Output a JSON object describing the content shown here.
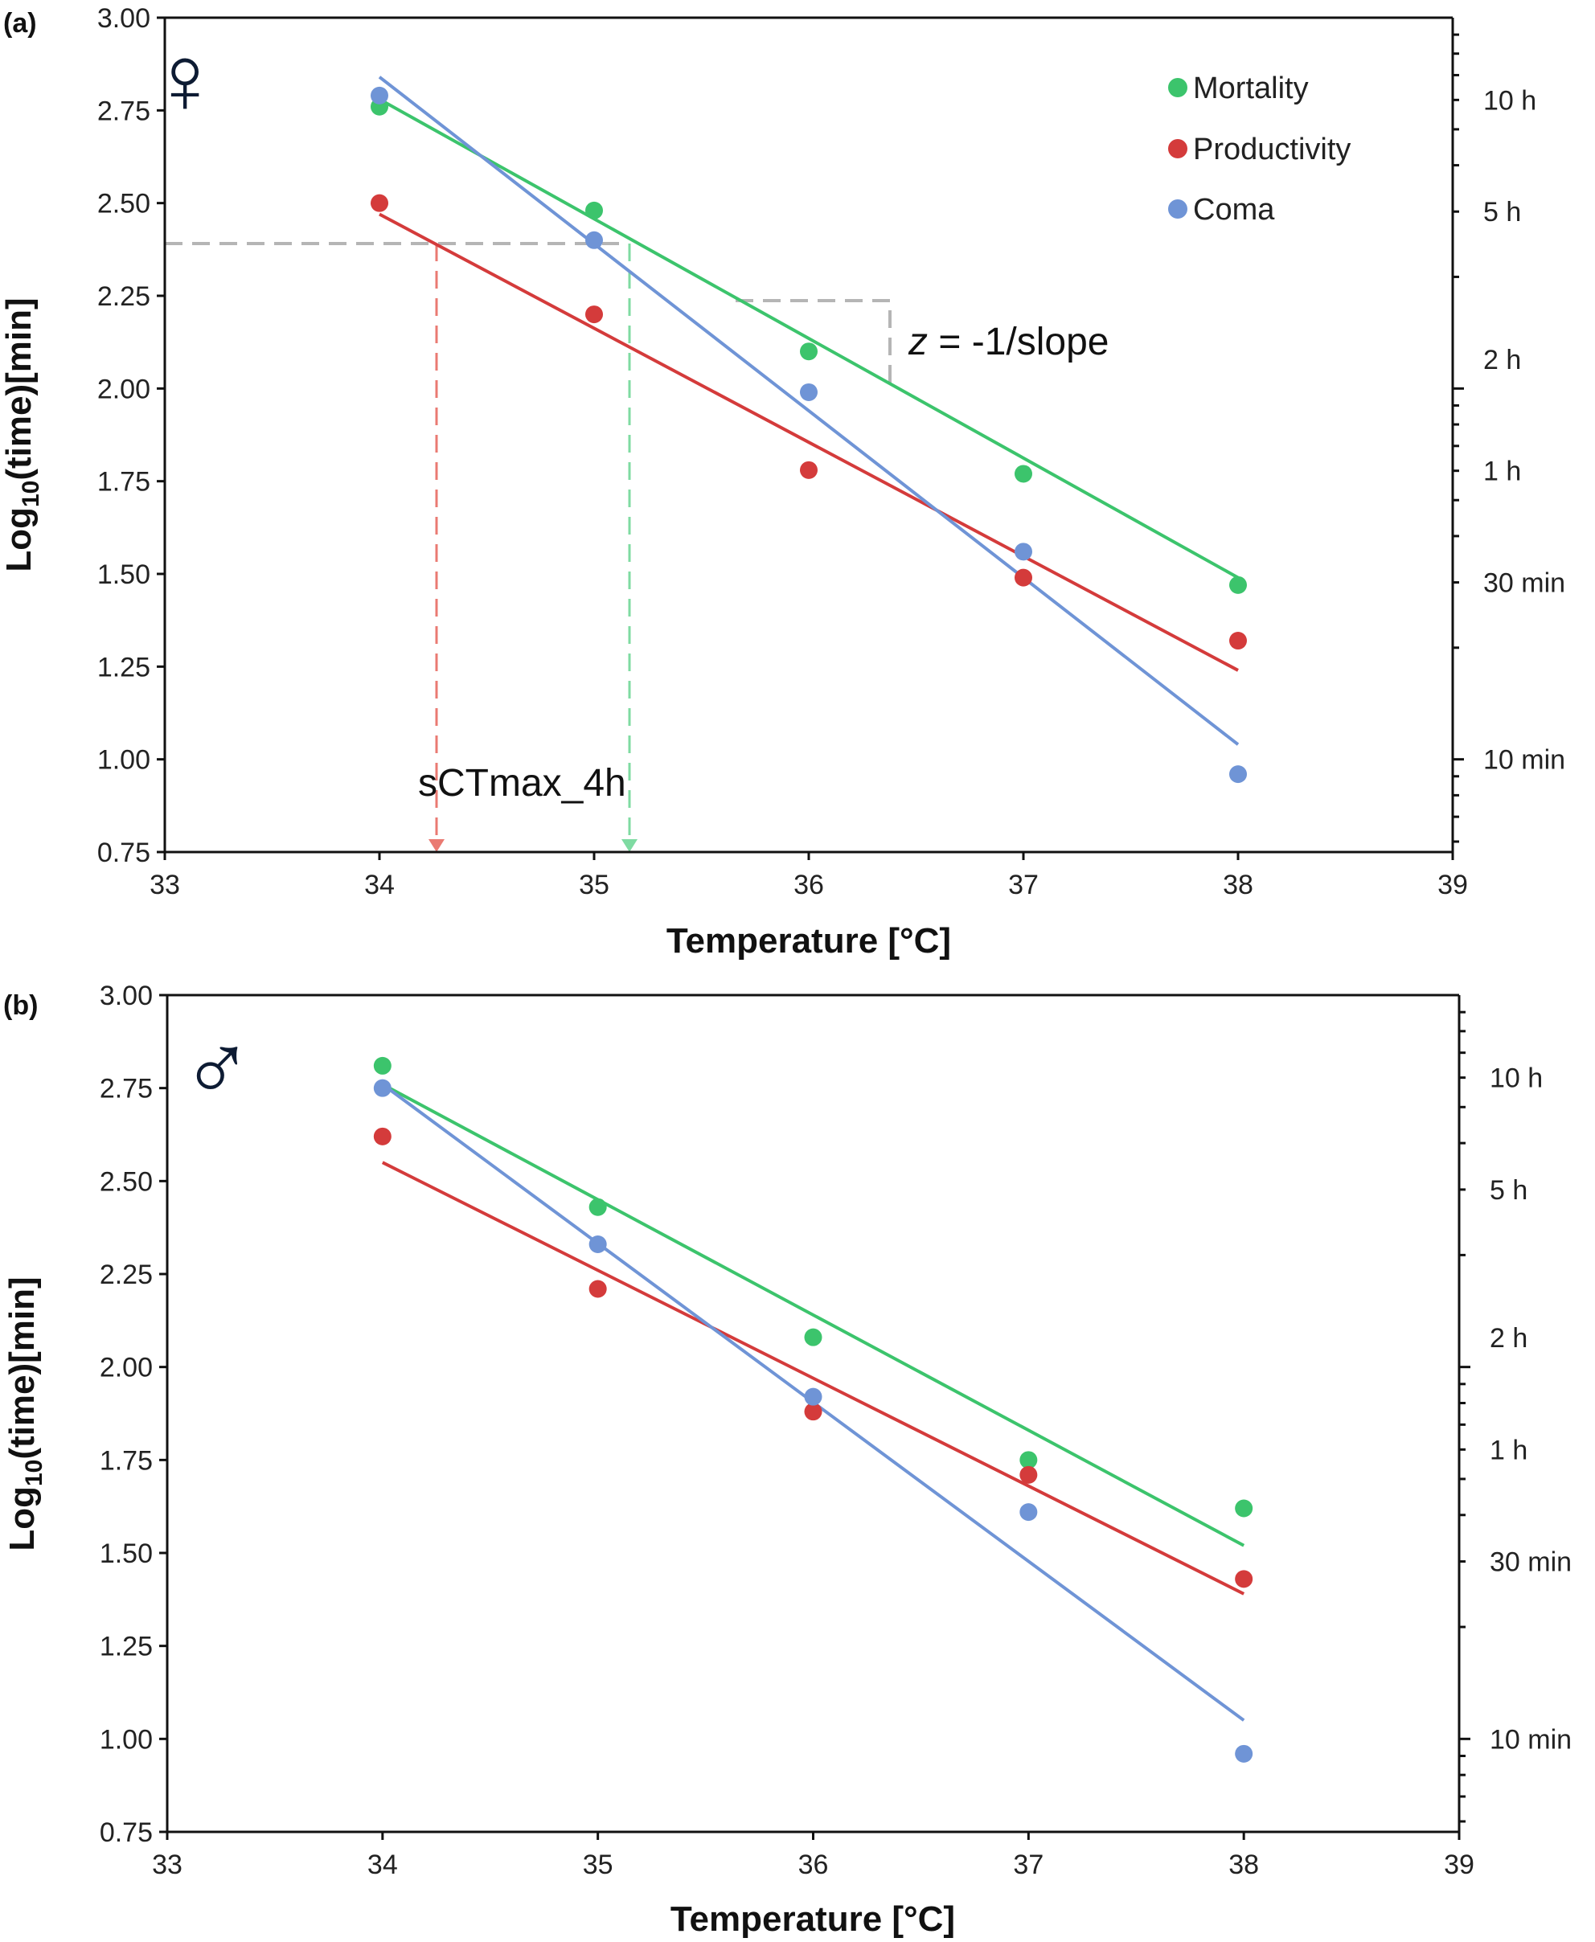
{
  "figure": {
    "legend": [
      {
        "name": "Mortality",
        "color": "#3cc46c"
      },
      {
        "name": "Productivity",
        "color": "#d43b3b"
      },
      {
        "name": "Coma",
        "color": "#6f94d6"
      }
    ],
    "annotations": {
      "slope_var": "z",
      "slope_text": " = -1/slope",
      "sctmax_text": "sCTmax_4h"
    }
  },
  "chart_data": [
    {
      "panel_label": "(a)",
      "sex_symbol": "♀",
      "type": "scatter",
      "xlabel": "Temperature [°C]",
      "ylabel_main": "Log",
      "ylabel_sub": "10",
      "ylabel_rest": "(time)[min]",
      "xlim": [
        33,
        39
      ],
      "ylim": [
        0.75,
        3.0
      ],
      "xticks": [
        "33",
        "34",
        "35",
        "36",
        "37",
        "38",
        "39"
      ],
      "yticks": [
        "0.75",
        "1.00",
        "1.25",
        "1.50",
        "1.75",
        "2.00",
        "2.25",
        "2.50",
        "2.75",
        "3.00"
      ],
      "right_axis": {
        "scale": "log",
        "labels": [
          "10 h",
          "5 h",
          "2 h",
          "1 h",
          "30 min",
          "10 min"
        ]
      },
      "legend_position": "top-right",
      "grid": false,
      "series": [
        {
          "name": "Mortality",
          "color": "#3cc46c",
          "x": [
            34,
            35,
            36,
            37,
            38
          ],
          "y": [
            2.76,
            2.48,
            2.1,
            1.77,
            1.47
          ],
          "fit": {
            "x": [
              34,
              38
            ],
            "y": [
              2.78,
              1.49
            ]
          }
        },
        {
          "name": "Productivity",
          "color": "#d43b3b",
          "x": [
            34,
            35,
            36,
            37,
            38
          ],
          "y": [
            2.5,
            2.2,
            1.78,
            1.49,
            1.32
          ],
          "fit": {
            "x": [
              34,
              38
            ],
            "y": [
              2.47,
              1.24
            ]
          }
        },
        {
          "name": "Coma",
          "color": "#6f94d6",
          "x": [
            34,
            35,
            36,
            37,
            38
          ],
          "y": [
            2.79,
            2.4,
            1.99,
            1.56,
            0.96
          ],
          "fit": {
            "x": [
              34,
              38
            ],
            "y": [
              2.84,
              1.04
            ]
          }
        }
      ]
    },
    {
      "panel_label": "(b)",
      "sex_symbol": "♂",
      "type": "scatter",
      "xlabel": "Temperature [°C]",
      "ylabel_main": "Log",
      "ylabel_sub": "10",
      "ylabel_rest": "(time)[min]",
      "xlim": [
        33,
        39
      ],
      "ylim": [
        0.75,
        3.0
      ],
      "xticks": [
        "33",
        "34",
        "35",
        "36",
        "37",
        "38",
        "39"
      ],
      "yticks": [
        "0.75",
        "1.00",
        "1.25",
        "1.50",
        "1.75",
        "2.00",
        "2.25",
        "2.50",
        "2.75",
        "3.00"
      ],
      "right_axis": {
        "scale": "log",
        "labels": [
          "10 h",
          "5 h",
          "2 h",
          "1 h",
          "30 min",
          "10 min"
        ]
      },
      "grid": false,
      "series": [
        {
          "name": "Mortality",
          "color": "#3cc46c",
          "x": [
            34,
            35,
            36,
            37,
            38
          ],
          "y": [
            2.81,
            2.43,
            2.08,
            1.75,
            1.62
          ],
          "fit": {
            "x": [
              34,
              38
            ],
            "y": [
              2.76,
              1.52
            ]
          }
        },
        {
          "name": "Productivity",
          "color": "#d43b3b",
          "x": [
            34,
            35,
            36,
            37,
            38
          ],
          "y": [
            2.62,
            2.21,
            1.88,
            1.71,
            1.43
          ],
          "fit": {
            "x": [
              34,
              38
            ],
            "y": [
              2.55,
              1.39
            ]
          }
        },
        {
          "name": "Coma",
          "color": "#6f94d6",
          "x": [
            34,
            35,
            36,
            37,
            38
          ],
          "y": [
            2.75,
            2.33,
            1.92,
            1.61,
            0.96
          ],
          "fit": {
            "x": [
              34,
              38
            ],
            "y": [
              2.76,
              1.05
            ]
          }
        }
      ]
    }
  ]
}
